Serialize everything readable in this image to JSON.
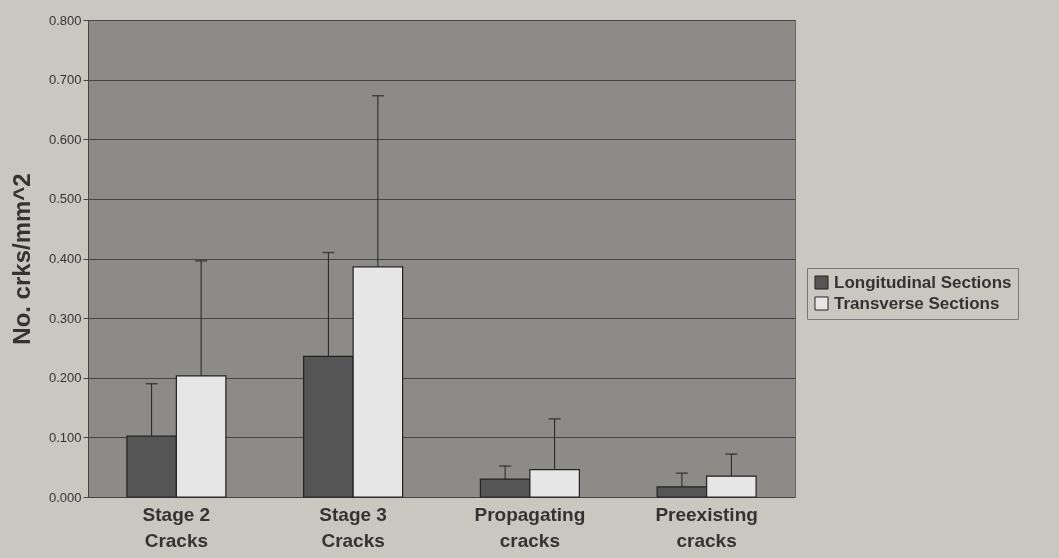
{
  "chart_data": {
    "type": "bar",
    "ylabel": "No. crks/mm^2",
    "categories": [
      "Stage 2\nCracks",
      "Stage 3\nCracks",
      "Propagating\ncracks",
      "Preexisting\ncracks"
    ],
    "series": [
      {
        "name": "Longitudinal Sections",
        "color": "#555555",
        "values": [
          0.102,
          0.236,
          0.03,
          0.017
        ],
        "errors": [
          [
            0.102,
            0.19
          ],
          [
            0.236,
            0.41
          ],
          [
            0.03,
            0.052
          ],
          [
            0.017,
            0.04
          ]
        ]
      },
      {
        "name": "Transverse Sections",
        "color": "#e6e6e6",
        "values": [
          0.203,
          0.386,
          0.046,
          0.035
        ],
        "errors": [
          [
            0.203,
            0.396
          ],
          [
            0.386,
            0.673
          ],
          [
            0.046,
            0.131
          ],
          [
            0.035,
            0.072
          ]
        ]
      }
    ],
    "ylim": [
      0,
      0.8
    ],
    "yticks": [
      {
        "value": 0,
        "label": "0.000"
      },
      {
        "value": 0.1,
        "label": "0.100"
      },
      {
        "value": 0.2,
        "label": "0.200"
      },
      {
        "value": 0.3,
        "label": "0.300"
      },
      {
        "value": 0.4,
        "label": "0.400"
      },
      {
        "value": 0.5,
        "label": "0.500"
      },
      {
        "value": 0.6,
        "label": "0.600"
      },
      {
        "value": 0.7,
        "label": "0.700"
      },
      {
        "value": 0.8,
        "label": "0.800"
      }
    ],
    "grid": "y",
    "legend": "right"
  }
}
